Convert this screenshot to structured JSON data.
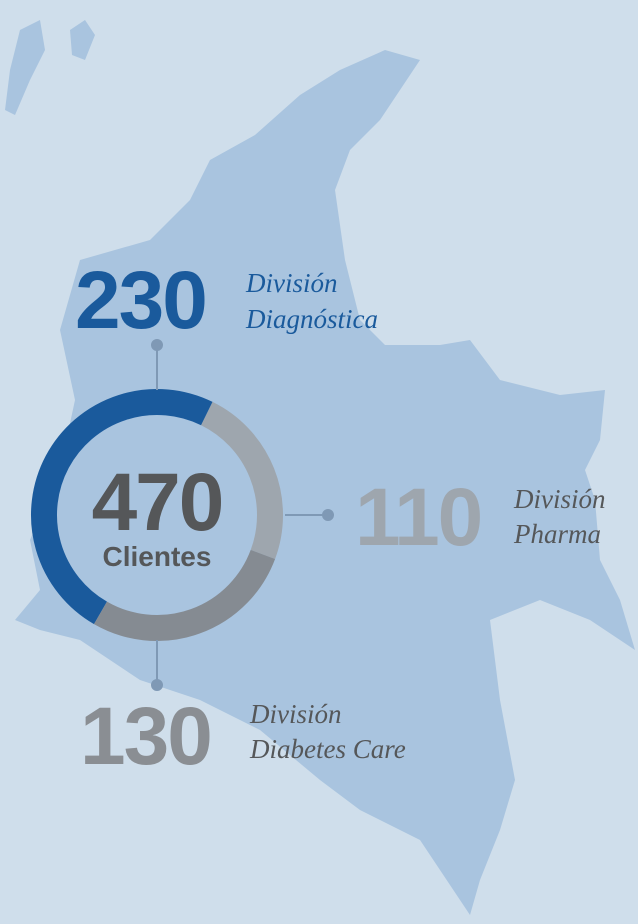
{
  "chart_data": {
    "type": "donut",
    "categories": [
      [
        "División",
        "Diagnóstica"
      ],
      [
        "División",
        "Pharma"
      ],
      [
        "División",
        "Diabetes Care"
      ]
    ],
    "values": [
      230,
      110,
      130
    ],
    "colors": [
      "#1a5a9c",
      "#9ea6ae",
      "#858b92"
    ],
    "text_colors": [
      "#1a5a9c",
      "#9ea6ae",
      "#8a8e93"
    ],
    "center_value": 470,
    "center_label": "Clientes"
  }
}
